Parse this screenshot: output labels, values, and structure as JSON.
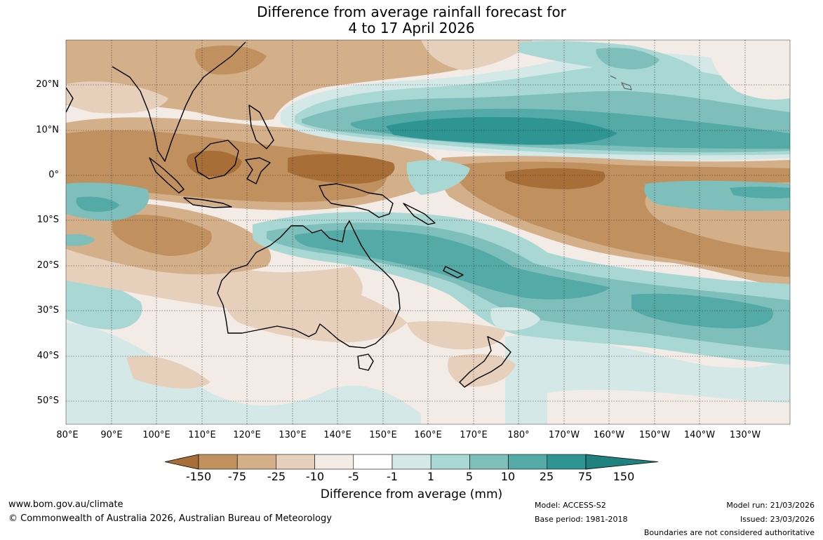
{
  "title": {
    "line1": "Difference from average rainfall forecast for",
    "line2": "4 to 17 April 2026"
  },
  "map": {
    "lat_labels": [
      "20°N",
      "10°N",
      "0°",
      "10°S",
      "20°S",
      "30°S",
      "40°S",
      "50°S"
    ],
    "lon_labels": [
      "80°E",
      "90°E",
      "100°E",
      "110°E",
      "120°E",
      "130°E",
      "140°E",
      "150°E",
      "160°E",
      "170°E",
      "180°",
      "170°W",
      "160°W",
      "150°W",
      "140°W",
      "130°W"
    ],
    "colors": {
      "vdry": "#a86e38",
      "dry": "#c0915f",
      "mdry": "#d4b08a",
      "ldry": "#e6d0bb",
      "vldry": "#f3ebe5",
      "neutral": "#ffffff",
      "vlwet": "#d4e9e7",
      "lwet": "#a9d7d4",
      "mwet": "#7ebfbc",
      "wet": "#54aaa7",
      "vwet": "#2e9593",
      "ewet": "#20807e"
    }
  },
  "colorbar": {
    "ticks": [
      "-150",
      "-75",
      "-25",
      "-10",
      "-5",
      "-1",
      "1",
      "5",
      "10",
      "25",
      "75",
      "150"
    ],
    "colors": [
      "#a86e38",
      "#c0915f",
      "#d4b08a",
      "#e6d0bb",
      "#f3ebe5",
      "#ffffff",
      "#d4e9e7",
      "#a9d7d4",
      "#7ebfbc",
      "#54aaa7",
      "#2e9593",
      "#20807e"
    ],
    "title": "Difference from average (mm)"
  },
  "footer": {
    "website": "www.bom.gov.au/climate",
    "copyright": "© Commonwealth of Australia 2026, Australian Bureau of Meteorology",
    "model": "Model: ACCESS-S2",
    "base_period": "Base period: 1981-2018",
    "model_run": "Model run: 21/03/2026",
    "issued": "Issued: 23/03/2026",
    "disclaimer": "Boundaries are not considered authoritative"
  }
}
